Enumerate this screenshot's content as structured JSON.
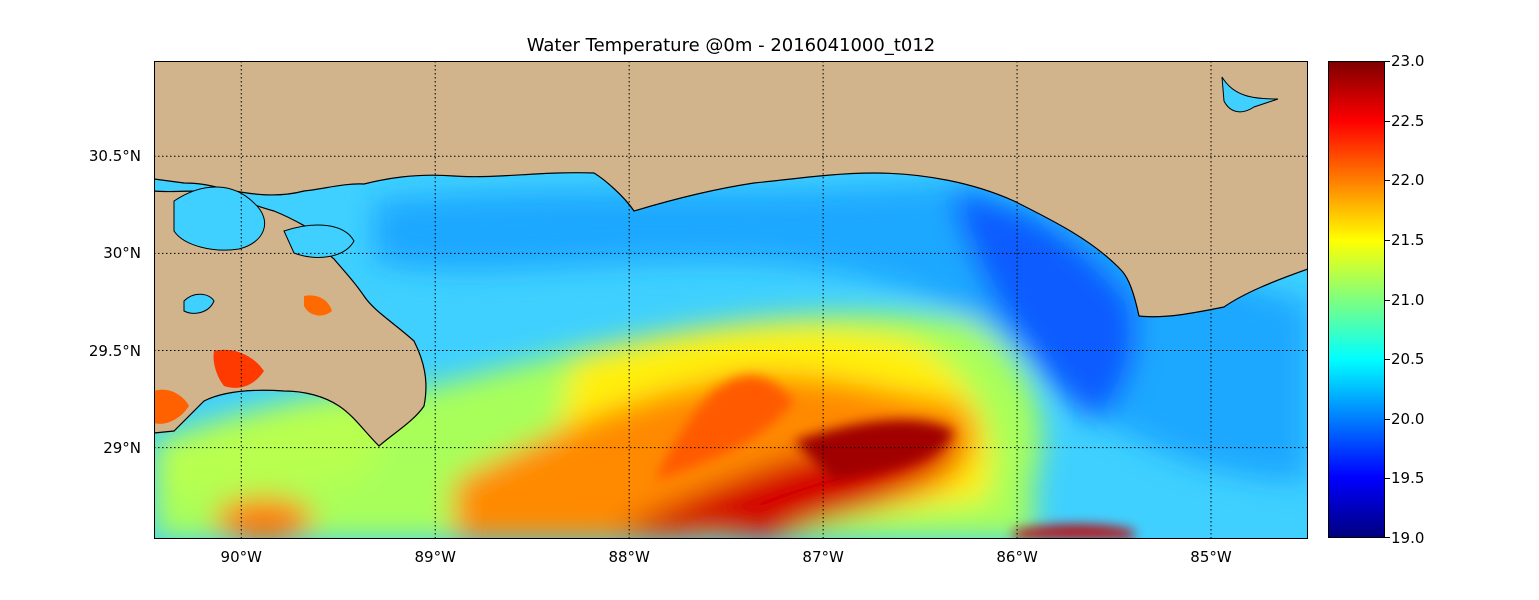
{
  "title": "Water Temperature @0m - 2016041000_t012",
  "map": {
    "projection": "cylindrical",
    "lon_range": [
      -90.45,
      -84.5
    ],
    "lat_range": [
      28.53,
      30.99
    ],
    "lat_ticks": [
      {
        "value": 30.5,
        "label": "30.5°N"
      },
      {
        "value": 30.0,
        "label": "30°N"
      },
      {
        "value": 29.5,
        "label": "29.5°N"
      },
      {
        "value": 29.0,
        "label": "29°N"
      }
    ],
    "lon_ticks": [
      {
        "value": -90,
        "label": "90°W"
      },
      {
        "value": -89,
        "label": "89°W"
      },
      {
        "value": -88,
        "label": "88°W"
      },
      {
        "value": -87,
        "label": "87°W"
      },
      {
        "value": -86,
        "label": "86°W"
      },
      {
        "value": -85,
        "label": "85°W"
      }
    ],
    "gridlines": "dotted",
    "land_color": "#d2b48c",
    "variable": "water temperature at 0 m",
    "colormap": "jet"
  },
  "colorbar": {
    "min": 19.0,
    "max": 23.0,
    "ticks": [
      "19.0",
      "19.5",
      "20.0",
      "20.5",
      "21.0",
      "21.5",
      "22.0",
      "22.5",
      "23.0"
    ]
  }
}
